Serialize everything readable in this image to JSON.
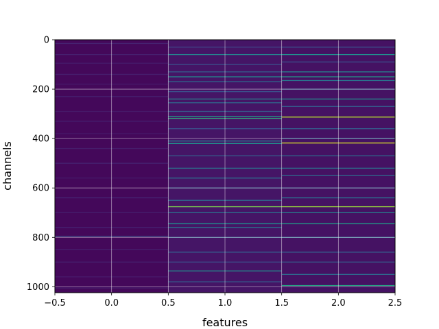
{
  "chart_data": {
    "type": "heatmap",
    "title": "",
    "xlabel": "features",
    "ylabel": "channels",
    "xlim": [
      -0.5,
      2.5
    ],
    "ylim": [
      1024,
      0
    ],
    "y_inverted": true,
    "n_rows": 1024,
    "n_cols": 3,
    "x_ticks": [
      -0.5,
      0.0,
      0.5,
      1.0,
      1.5,
      2.0,
      2.5
    ],
    "x_tick_labels": [
      "−0.5",
      "0.0",
      "0.5",
      "1.0",
      "1.5",
      "2.0",
      "2.5"
    ],
    "y_ticks": [
      0,
      200,
      400,
      600,
      800,
      1000
    ],
    "y_tick_labels": [
      "0",
      "200",
      "400",
      "600",
      "800",
      "1000"
    ],
    "grid": true,
    "colormap": "viridis",
    "value_range": [
      0,
      1
    ],
    "columns": [
      {
        "feature": 0,
        "background": 0.02,
        "bands": [
          {
            "channel": 15,
            "value": 0.1
          },
          {
            "channel": 60,
            "value": 0.09
          },
          {
            "channel": 95,
            "value": 0.08
          },
          {
            "channel": 140,
            "value": 0.09
          },
          {
            "channel": 180,
            "value": 0.07
          },
          {
            "channel": 230,
            "value": 0.1
          },
          {
            "channel": 290,
            "value": 0.08
          },
          {
            "channel": 330,
            "value": 0.09
          },
          {
            "channel": 380,
            "value": 0.07
          },
          {
            "channel": 440,
            "value": 0.09
          },
          {
            "channel": 500,
            "value": 0.1
          },
          {
            "channel": 560,
            "value": 0.07
          },
          {
            "channel": 640,
            "value": 0.1
          },
          {
            "channel": 700,
            "value": 0.09
          },
          {
            "channel": 760,
            "value": 0.1
          },
          {
            "channel": 796,
            "value": 0.22
          },
          {
            "channel": 850,
            "value": 0.09
          },
          {
            "channel": 900,
            "value": 0.1
          },
          {
            "channel": 960,
            "value": 0.08
          },
          {
            "channel": 1005,
            "value": 0.09
          }
        ]
      },
      {
        "feature": 1,
        "background": 0.06,
        "bands": [
          {
            "channel": 30,
            "value": 0.2
          },
          {
            "channel": 60,
            "value": 0.45
          },
          {
            "channel": 100,
            "value": 0.25
          },
          {
            "channel": 130,
            "value": 0.3
          },
          {
            "channel": 150,
            "value": 0.5
          },
          {
            "channel": 170,
            "value": 0.35
          },
          {
            "channel": 210,
            "value": 0.25
          },
          {
            "channel": 240,
            "value": 0.45
          },
          {
            "channel": 255,
            "value": 0.35
          },
          {
            "channel": 290,
            "value": 0.3
          },
          {
            "channel": 310,
            "value": 0.55
          },
          {
            "channel": 318,
            "value": 0.65
          },
          {
            "channel": 360,
            "value": 0.25
          },
          {
            "channel": 410,
            "value": 0.4
          },
          {
            "channel": 420,
            "value": 0.5
          },
          {
            "channel": 470,
            "value": 0.3
          },
          {
            "channel": 520,
            "value": 0.4
          },
          {
            "channel": 560,
            "value": 0.35
          },
          {
            "channel": 600,
            "value": 0.3
          },
          {
            "channel": 650,
            "value": 0.35
          },
          {
            "channel": 676,
            "value": 0.8
          },
          {
            "channel": 700,
            "value": 0.4
          },
          {
            "channel": 745,
            "value": 0.5
          },
          {
            "channel": 760,
            "value": 0.4
          },
          {
            "channel": 800,
            "value": 0.3
          },
          {
            "channel": 860,
            "value": 0.3
          },
          {
            "channel": 900,
            "value": 0.25
          },
          {
            "channel": 936,
            "value": 0.5
          },
          {
            "channel": 980,
            "value": 0.3
          }
        ]
      },
      {
        "feature": 2,
        "background": 0.05,
        "bands": [
          {
            "channel": 30,
            "value": 0.25
          },
          {
            "channel": 60,
            "value": 0.5
          },
          {
            "channel": 90,
            "value": 0.25
          },
          {
            "channel": 130,
            "value": 0.45
          },
          {
            "channel": 150,
            "value": 0.55
          },
          {
            "channel": 165,
            "value": 0.4
          },
          {
            "channel": 200,
            "value": 0.3
          },
          {
            "channel": 240,
            "value": 0.5
          },
          {
            "channel": 270,
            "value": 0.3
          },
          {
            "channel": 313,
            "value": 0.9
          },
          {
            "channel": 360,
            "value": 0.3
          },
          {
            "channel": 400,
            "value": 0.35
          },
          {
            "channel": 418,
            "value": 0.95
          },
          {
            "channel": 470,
            "value": 0.35
          },
          {
            "channel": 520,
            "value": 0.4
          },
          {
            "channel": 550,
            "value": 0.35
          },
          {
            "channel": 600,
            "value": 0.3
          },
          {
            "channel": 640,
            "value": 0.35
          },
          {
            "channel": 676,
            "value": 0.85
          },
          {
            "channel": 700,
            "value": 0.45
          },
          {
            "channel": 745,
            "value": 0.55
          },
          {
            "channel": 800,
            "value": 0.35
          },
          {
            "channel": 860,
            "value": 0.3
          },
          {
            "channel": 900,
            "value": 0.3
          },
          {
            "channel": 950,
            "value": 0.35
          },
          {
            "channel": 995,
            "value": 0.6
          }
        ]
      }
    ]
  }
}
